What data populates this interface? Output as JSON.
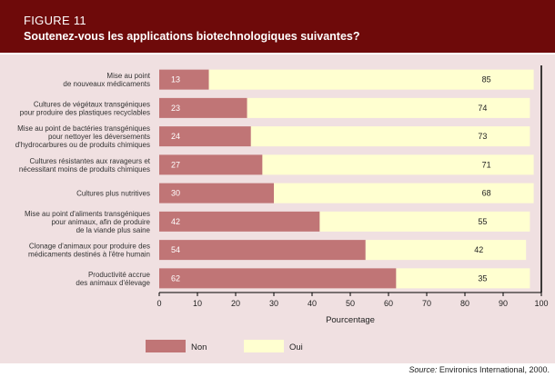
{
  "header": {
    "figure_number": "FIGURE 11",
    "title": "Soutenez-vous les applications biotechnologiques suivantes?"
  },
  "chart_data": {
    "type": "bar",
    "orientation": "horizontal",
    "stacked": true,
    "categories": [
      [
        "Mise au point",
        "de nouveaux médicaments"
      ],
      [
        "Cultures de végétaux transgéniques",
        "pour produire des plastiques recyclables"
      ],
      [
        "Mise au point de bactéries transgéniques",
        "pour nettoyer les déversements",
        "d'hydrocarbures ou de produits chimiques"
      ],
      [
        "Cultures résistantes aux ravageurs et",
        "nécessitant moins de produits chimiques"
      ],
      [
        "Cultures plus nutritives"
      ],
      [
        "Mise au point d'aliments transgéniques",
        "pour animaux, afin de produire",
        "de la viande plus saine"
      ],
      [
        "Clonage d'animaux pour produire des",
        "médicaments destinés à l'être humain"
      ],
      [
        "Productivité accrue",
        "des animaux d'élevage"
      ]
    ],
    "series": [
      {
        "name": "Non",
        "color": "#c07576",
        "values": [
          13,
          23,
          24,
          27,
          30,
          42,
          54,
          62
        ]
      },
      {
        "name": "Oui",
        "color": "#ffffd0",
        "values": [
          85,
          74,
          73,
          71,
          68,
          55,
          42,
          35
        ]
      }
    ],
    "xlabel": "Pourcentage",
    "ylabel": "",
    "xlim": [
      0,
      100
    ],
    "xticks": [
      0,
      10,
      20,
      30,
      40,
      50,
      60,
      70,
      80,
      90,
      100
    ],
    "legend_position": "bottom"
  },
  "source": {
    "prefix": "Source:",
    "text": " Environics International, 2000."
  }
}
